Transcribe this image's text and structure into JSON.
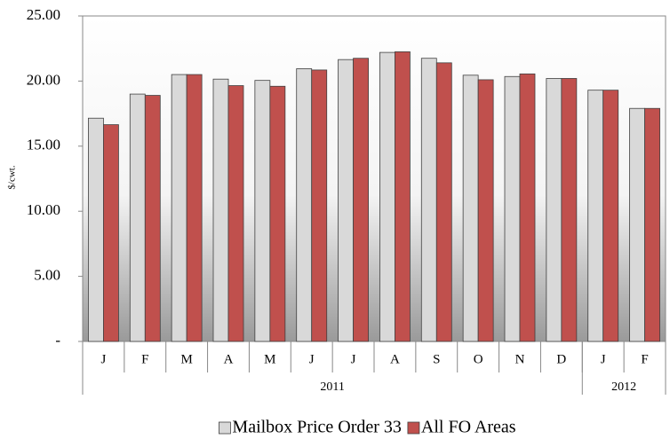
{
  "chart_data": {
    "type": "bar",
    "y_axis_label": "$/cwt.",
    "groups": [
      {
        "label": "2011",
        "categories": [
          "J",
          "F",
          "M",
          "A",
          "M",
          "J",
          "J",
          "A",
          "S",
          "O",
          "N",
          "D"
        ]
      },
      {
        "label": "2012",
        "categories": [
          "J",
          "F"
        ]
      }
    ],
    "series": [
      {
        "name": "Mailbox Price Order 33",
        "color": "#d9d9d9",
        "values": [
          17.15,
          19.0,
          20.5,
          20.15,
          20.05,
          20.95,
          21.65,
          22.2,
          21.75,
          20.45,
          20.35,
          20.2,
          19.3,
          17.9
        ]
      },
      {
        "name": "All FO Areas",
        "color": "#c0504d",
        "values": [
          16.65,
          18.9,
          20.5,
          19.65,
          19.6,
          20.85,
          21.75,
          22.25,
          21.4,
          20.1,
          20.55,
          20.2,
          19.3,
          17.9
        ]
      }
    ],
    "ylim": [
      0,
      25
    ],
    "yticks": [
      {
        "value": 0,
        "label": "-"
      },
      {
        "value": 5,
        "label": "5.00"
      },
      {
        "value": 10,
        "label": "10.00"
      },
      {
        "value": 15,
        "label": "15.00"
      },
      {
        "value": 20,
        "label": "20.00"
      },
      {
        "value": 25,
        "label": "25.00"
      }
    ],
    "grid": false,
    "legend": "bottom"
  }
}
